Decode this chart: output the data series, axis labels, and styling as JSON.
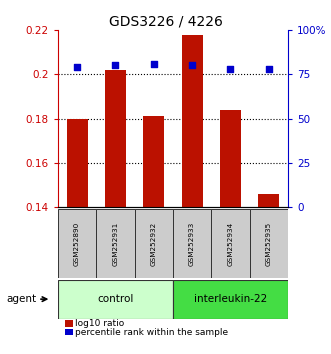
{
  "title": "GDS3226 / 4226",
  "samples": [
    "GSM252890",
    "GSM252931",
    "GSM252932",
    "GSM252933",
    "GSM252934",
    "GSM252935"
  ],
  "log10_ratio": [
    0.18,
    0.202,
    0.181,
    0.218,
    0.184,
    0.146
  ],
  "percentile_rank": [
    79,
    80,
    81,
    80,
    78,
    78
  ],
  "ymin": 0.14,
  "ymax": 0.22,
  "y_ticks": [
    0.14,
    0.16,
    0.18,
    0.2,
    0.22
  ],
  "y_tick_labels": [
    "0.14",
    "0.16",
    "0.18",
    "0.2",
    "0.22"
  ],
  "y2min": 0,
  "y2max": 100,
  "y2_ticks": [
    0,
    25,
    50,
    75,
    100
  ],
  "y2_labels": [
    "0",
    "25",
    "50",
    "75",
    "100%"
  ],
  "bar_color": "#bb1100",
  "dot_color": "#0000cc",
  "bar_width": 0.55,
  "groups": [
    {
      "label": "control",
      "indices": [
        0,
        1,
        2
      ],
      "color": "#ccffcc"
    },
    {
      "label": "interleukin-22",
      "indices": [
        3,
        4,
        5
      ],
      "color": "#44dd44"
    }
  ],
  "agent_label": "agent",
  "legend_bar_label": "log10 ratio",
  "legend_dot_label": "percentile rank within the sample",
  "left_axis_color": "#cc0000",
  "right_axis_color": "#0000cc",
  "grid_lines": [
    0.16,
    0.18,
    0.2
  ]
}
